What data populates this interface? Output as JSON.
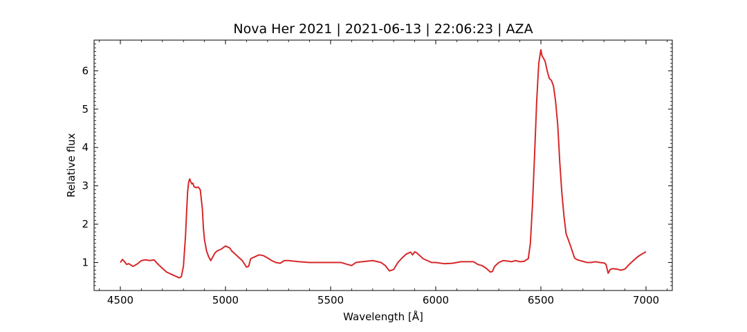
{
  "chart_data": {
    "type": "line",
    "title": "Nova Her 2021 | 2021-06-13 | 22:06:23 | AZA",
    "xlabel": "Wavelength [Å]",
    "ylabel": "Relative flux",
    "xlim": [
      4375,
      7125
    ],
    "ylim": [
      0.27,
      6.8
    ],
    "xticks": [
      4500,
      5000,
      5500,
      6000,
      6500,
      7000
    ],
    "yticks": [
      1,
      2,
      3,
      4,
      5,
      6
    ],
    "grid": false,
    "series_color": "#d62728",
    "series": [
      {
        "x": [
          4500,
          4510,
          4520,
          4530,
          4540,
          4560,
          4580,
          4600,
          4620,
          4640,
          4660,
          4680,
          4700,
          4720,
          4740,
          4760,
          4780,
          4790,
          4800,
          4810,
          4815,
          4820,
          4825,
          4830,
          4835,
          4840,
          4845,
          4850,
          4860,
          4870,
          4880,
          4890,
          4895,
          4900,
          4910,
          4920,
          4930,
          4940,
          4950,
          4960,
          4980,
          5000,
          5020,
          5030,
          5040,
          5060,
          5080,
          5100,
          5110,
          5120,
          5140,
          5160,
          5180,
          5200,
          5220,
          5240,
          5260,
          5280,
          5300,
          5350,
          5400,
          5450,
          5500,
          5550,
          5580,
          5600,
          5620,
          5650,
          5700,
          5740,
          5760,
          5780,
          5800,
          5820,
          5840,
          5860,
          5880,
          5890,
          5900,
          5910,
          5920,
          5940,
          5960,
          5980,
          6000,
          6040,
          6080,
          6120,
          6150,
          6180,
          6200,
          6220,
          6240,
          6260,
          6270,
          6280,
          6300,
          6320,
          6340,
          6360,
          6380,
          6400,
          6420,
          6440,
          6450,
          6460,
          6470,
          6480,
          6490,
          6500,
          6505,
          6510,
          6520,
          6530,
          6540,
          6550,
          6560,
          6570,
          6580,
          6590,
          6600,
          6610,
          6620,
          6640,
          6660,
          6670,
          6680,
          6700,
          6720,
          6740,
          6760,
          6780,
          6800,
          6810,
          6820,
          6830,
          6840,
          6860,
          6880,
          6900,
          6920,
          6940,
          6960,
          6980,
          7000
        ],
        "y": [
          1.0,
          1.08,
          1.02,
          0.95,
          0.97,
          0.9,
          0.96,
          1.05,
          1.07,
          1.05,
          1.07,
          0.95,
          0.85,
          0.75,
          0.7,
          0.65,
          0.6,
          0.63,
          0.9,
          1.7,
          2.3,
          2.85,
          3.1,
          3.18,
          3.1,
          3.05,
          3.07,
          2.98,
          2.95,
          2.97,
          2.9,
          2.4,
          1.9,
          1.6,
          1.3,
          1.15,
          1.05,
          1.15,
          1.25,
          1.3,
          1.35,
          1.43,
          1.38,
          1.3,
          1.25,
          1.15,
          1.05,
          0.88,
          0.9,
          1.1,
          1.15,
          1.2,
          1.18,
          1.12,
          1.05,
          1.0,
          0.98,
          1.05,
          1.05,
          1.02,
          1.0,
          1.0,
          1.0,
          1.0,
          0.95,
          0.92,
          1.0,
          1.02,
          1.05,
          1.0,
          0.92,
          0.78,
          0.82,
          1.0,
          1.12,
          1.22,
          1.27,
          1.2,
          1.28,
          1.25,
          1.2,
          1.1,
          1.05,
          1.0,
          1.0,
          0.97,
          0.98,
          1.02,
          1.02,
          1.02,
          0.95,
          0.92,
          0.85,
          0.75,
          0.77,
          0.9,
          1.0,
          1.05,
          1.04,
          1.02,
          1.05,
          1.02,
          1.03,
          1.1,
          1.5,
          2.5,
          3.8,
          5.2,
          6.2,
          6.55,
          6.4,
          6.35,
          6.25,
          6.0,
          5.8,
          5.75,
          5.6,
          5.2,
          4.6,
          3.6,
          2.8,
          2.2,
          1.75,
          1.45,
          1.12,
          1.08,
          1.06,
          1.03,
          1.0,
          1.0,
          1.02,
          1.0,
          0.99,
          0.95,
          0.72,
          0.82,
          0.84,
          0.83,
          0.8,
          0.83,
          0.95,
          1.05,
          1.15,
          1.22,
          1.28
        ]
      }
    ]
  }
}
